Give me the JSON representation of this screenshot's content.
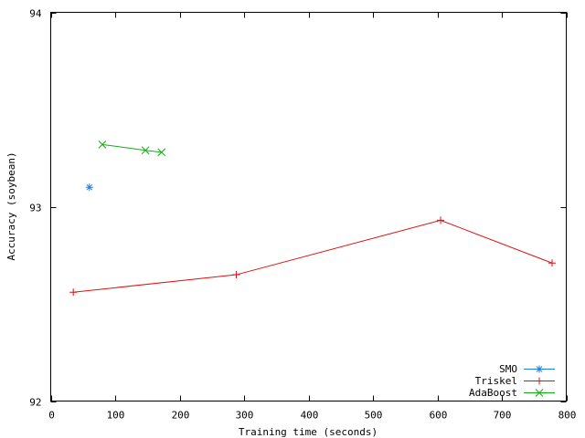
{
  "chart_data": {
    "type": "line",
    "xlabel": "Training time (seconds)",
    "ylabel": "Accuracy (soybean)",
    "xlim": [
      0,
      800
    ],
    "ylim": [
      92,
      94
    ],
    "x_ticks": [
      0,
      100,
      200,
      300,
      400,
      500,
      600,
      700,
      800
    ],
    "y_ticks": [
      92,
      93,
      94
    ],
    "grid": false,
    "legend_position": "bottom-right",
    "series": [
      {
        "name": "SMO",
        "color": "#1f7fe0",
        "marker": "star",
        "line": false,
        "points": [
          [
            60,
            93.1
          ]
        ]
      },
      {
        "name": "Triskel",
        "color": "#e01010",
        "marker": "plus",
        "line": true,
        "points": [
          [
            35,
            92.56
          ],
          [
            288,
            92.65
          ],
          [
            605,
            92.93
          ],
          [
            778,
            92.71
          ]
        ]
      },
      {
        "name": "AdaBoost",
        "color": "#10b010",
        "marker": "cross",
        "line": true,
        "points": [
          [
            80,
            93.32
          ],
          [
            147,
            93.29
          ],
          [
            172,
            93.28
          ]
        ]
      }
    ]
  }
}
